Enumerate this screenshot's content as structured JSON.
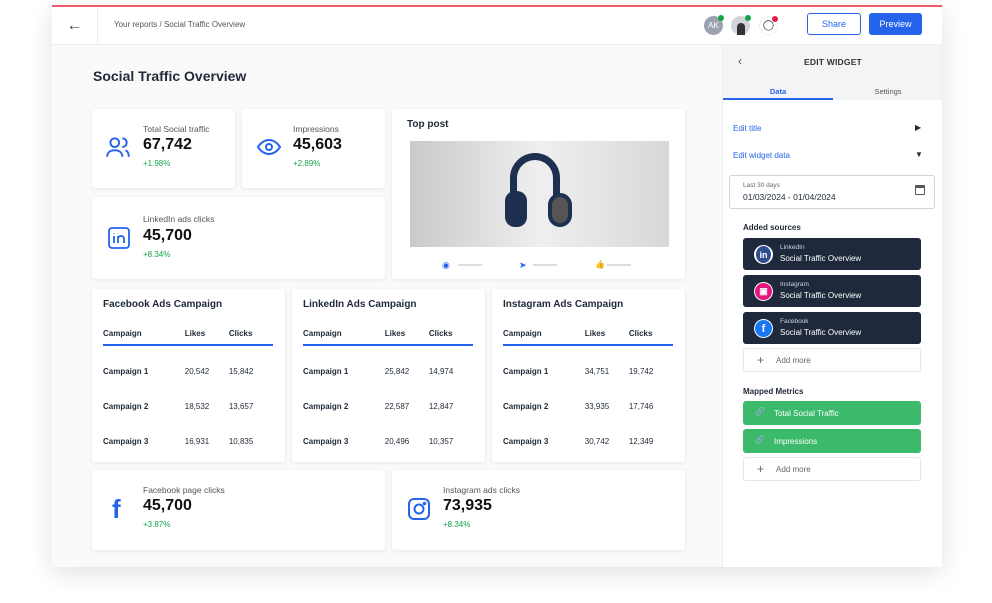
{
  "header": {
    "breadcrumb": "Your reports / Social Traffic Overview",
    "avatar_initials": "AK",
    "share": "Share",
    "preview": "Preview"
  },
  "page_title": "Social Traffic Overview",
  "kpis": {
    "total": {
      "label": "Total Social traffic",
      "value": "67,742",
      "delta": "+1.98%"
    },
    "impressions": {
      "label": "Impressions",
      "value": "45,603",
      "delta": "+2.89%"
    },
    "linkedin": {
      "label": "LinkedIn ads clicks",
      "value": "45,700",
      "delta": "+8.34%"
    },
    "facebook": {
      "label": "Facebook page clicks",
      "value": "45,700",
      "delta": "+3.87%"
    },
    "instagram": {
      "label": "Instagram ads clicks",
      "value": "73,935",
      "delta": "+8.34%"
    }
  },
  "top_post": {
    "title": "Top post"
  },
  "tables": [
    {
      "title": "Facebook Ads Campaign",
      "headers": [
        "Campaign",
        "Likes",
        "Clicks"
      ],
      "rows": [
        [
          "Campaign 1",
          "20,542",
          "15,842"
        ],
        [
          "Campaign 2",
          "18,532",
          "13,657"
        ],
        [
          "Campaign 3",
          "16,931",
          "10,835"
        ]
      ]
    },
    {
      "title": "LinkedIn Ads Campaign",
      "headers": [
        "Campaign",
        "Likes",
        "Clicks"
      ],
      "rows": [
        [
          "Campaign 1",
          "25,842",
          "14,974"
        ],
        [
          "Campaign 2",
          "22,587",
          "12,847"
        ],
        [
          "Campaign 3",
          "20,496",
          "10,357"
        ]
      ]
    },
    {
      "title": "Instagram Ads Campaign",
      "headers": [
        "Campaign",
        "Likes",
        "Clicks"
      ],
      "rows": [
        [
          "Campaign 1",
          "34,751",
          "19,742"
        ],
        [
          "Campaign 2",
          "33,935",
          "17,746"
        ],
        [
          "Campaign 3",
          "30,742",
          "12,349"
        ]
      ]
    }
  ],
  "panel": {
    "title": "EDIT WIDGET",
    "tabs": [
      "Data",
      "Settings"
    ],
    "edit_title": "Edit title",
    "edit_data": "Edit widget data",
    "date_label": "Last 30 days",
    "date_value": "01/03/2024 - 01/04/2024",
    "sources_title": "Added sources",
    "sources": [
      {
        "name": "LinkedIn",
        "report": "Social Traffic Overview"
      },
      {
        "name": "Instagram",
        "report": "Social Traffic Overview"
      },
      {
        "name": "Facebook",
        "report": "Social Traffic Overview"
      }
    ],
    "add_more": "Add more",
    "metrics_title": "Mapped Metrics",
    "metrics": [
      "Total Social Traffic",
      "Impressions"
    ]
  },
  "colors": {
    "accent": "#2563eb",
    "positive": "#16a34a",
    "metric": "#3cba6b",
    "source": "#1e293b"
  }
}
